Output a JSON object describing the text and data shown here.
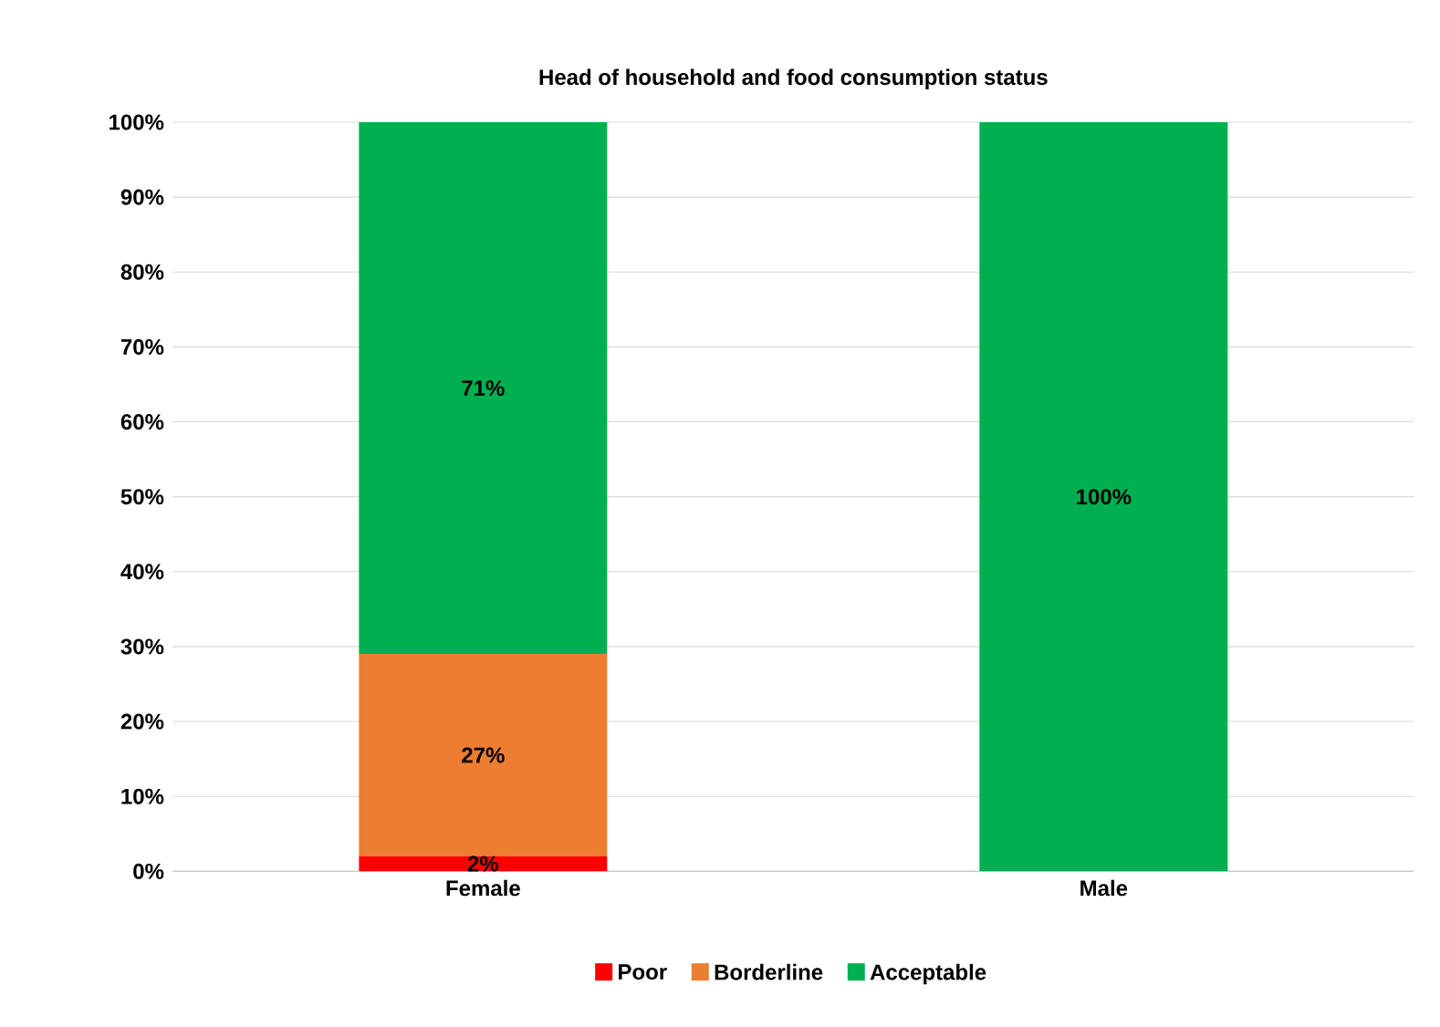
{
  "chart_data": {
    "type": "bar",
    "title": "Head of household and food consumption status",
    "categories": [
      "Female",
      "Male"
    ],
    "stacked": true,
    "series": [
      {
        "name": "Poor",
        "color": "#ff0000",
        "values": [
          2,
          0
        ],
        "value_labels": [
          "2%",
          null
        ]
      },
      {
        "name": "Borderline",
        "color": "#ed7d31",
        "values": [
          27,
          0
        ],
        "value_labels": [
          "27%",
          null
        ]
      },
      {
        "name": "Acceptable",
        "color": "#00b050",
        "values": [
          71,
          100
        ],
        "value_labels": [
          "71%",
          "100%"
        ]
      }
    ],
    "ylim": [
      0,
      100
    ],
    "yticks": [
      {
        "value": 0,
        "label": "0%"
      },
      {
        "value": 10,
        "label": "10%"
      },
      {
        "value": 20,
        "label": "20%"
      },
      {
        "value": 30,
        "label": "30%"
      },
      {
        "value": 40,
        "label": "40%"
      },
      {
        "value": 50,
        "label": "50%"
      },
      {
        "value": 60,
        "label": "60%"
      },
      {
        "value": 70,
        "label": "70%"
      },
      {
        "value": 80,
        "label": "80%"
      },
      {
        "value": 90,
        "label": "90%"
      },
      {
        "value": 100,
        "label": "100%"
      }
    ],
    "grid": "y",
    "legend": "bottom"
  }
}
